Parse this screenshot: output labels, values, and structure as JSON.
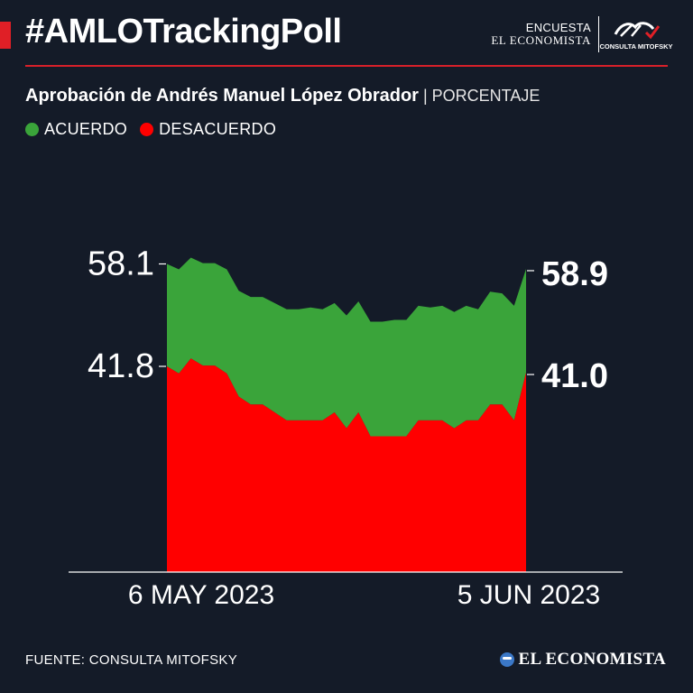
{
  "header": {
    "hashtag": "#AMLOTrackingPoll",
    "brand_line1": "ENCUESTA",
    "brand_line2": "EL ECONOMISTA",
    "partner": "CONSULTA MITOFSKY"
  },
  "subtitle": {
    "main": "Aprobación de Andrés Manuel López Obrador",
    "unit": " | PORCENTAJE"
  },
  "legend": [
    {
      "label": "ACUERDO",
      "color": "#3aa43a"
    },
    {
      "label": "DESACUERDO",
      "color": "#ff0000"
    }
  ],
  "chart_data": {
    "type": "area",
    "title": "Aprobación de Andrés Manuel López Obrador",
    "x_start_label": "6 MAY 2023",
    "x_end_label": "5 JUN 2023",
    "ylim": [
      0,
      100
    ],
    "grid": false,
    "series": [
      {
        "name": "ACUERDO",
        "color": "#3aa43a",
        "start_label": "58.1",
        "end_label": "58.9",
        "values": [
          58.1,
          59.1,
          57.2,
          58.1,
          58.1,
          59.1,
          60.0,
          61.0,
          61.0,
          62.0,
          63.0,
          63.0,
          64.0,
          63.0,
          62.0,
          64.0,
          63.0,
          65.0,
          65.0,
          66.0,
          66.0,
          65.0,
          64.0,
          65.0,
          66.0,
          65.0,
          63.0,
          64.0,
          63.0,
          65.0,
          58.9
        ]
      },
      {
        "name": "DESACUERDO",
        "color": "#ff0000",
        "start_label": "41.8",
        "end_label": "41.0",
        "values": [
          41.8,
          40.9,
          42.8,
          41.9,
          41.9,
          40.9,
          38.0,
          37.0,
          37.0,
          36.0,
          35.0,
          35.0,
          35.0,
          35.0,
          36.0,
          34.0,
          36.0,
          33.0,
          33.0,
          33.0,
          33.0,
          35.0,
          35.0,
          35.0,
          34.0,
          35.0,
          35.0,
          37.0,
          37.0,
          35.0,
          41.0
        ]
      }
    ]
  },
  "footer": {
    "source": "FUENTE: CONSULTA MITOFSKY",
    "logo": "EL ECONOMISTA"
  }
}
